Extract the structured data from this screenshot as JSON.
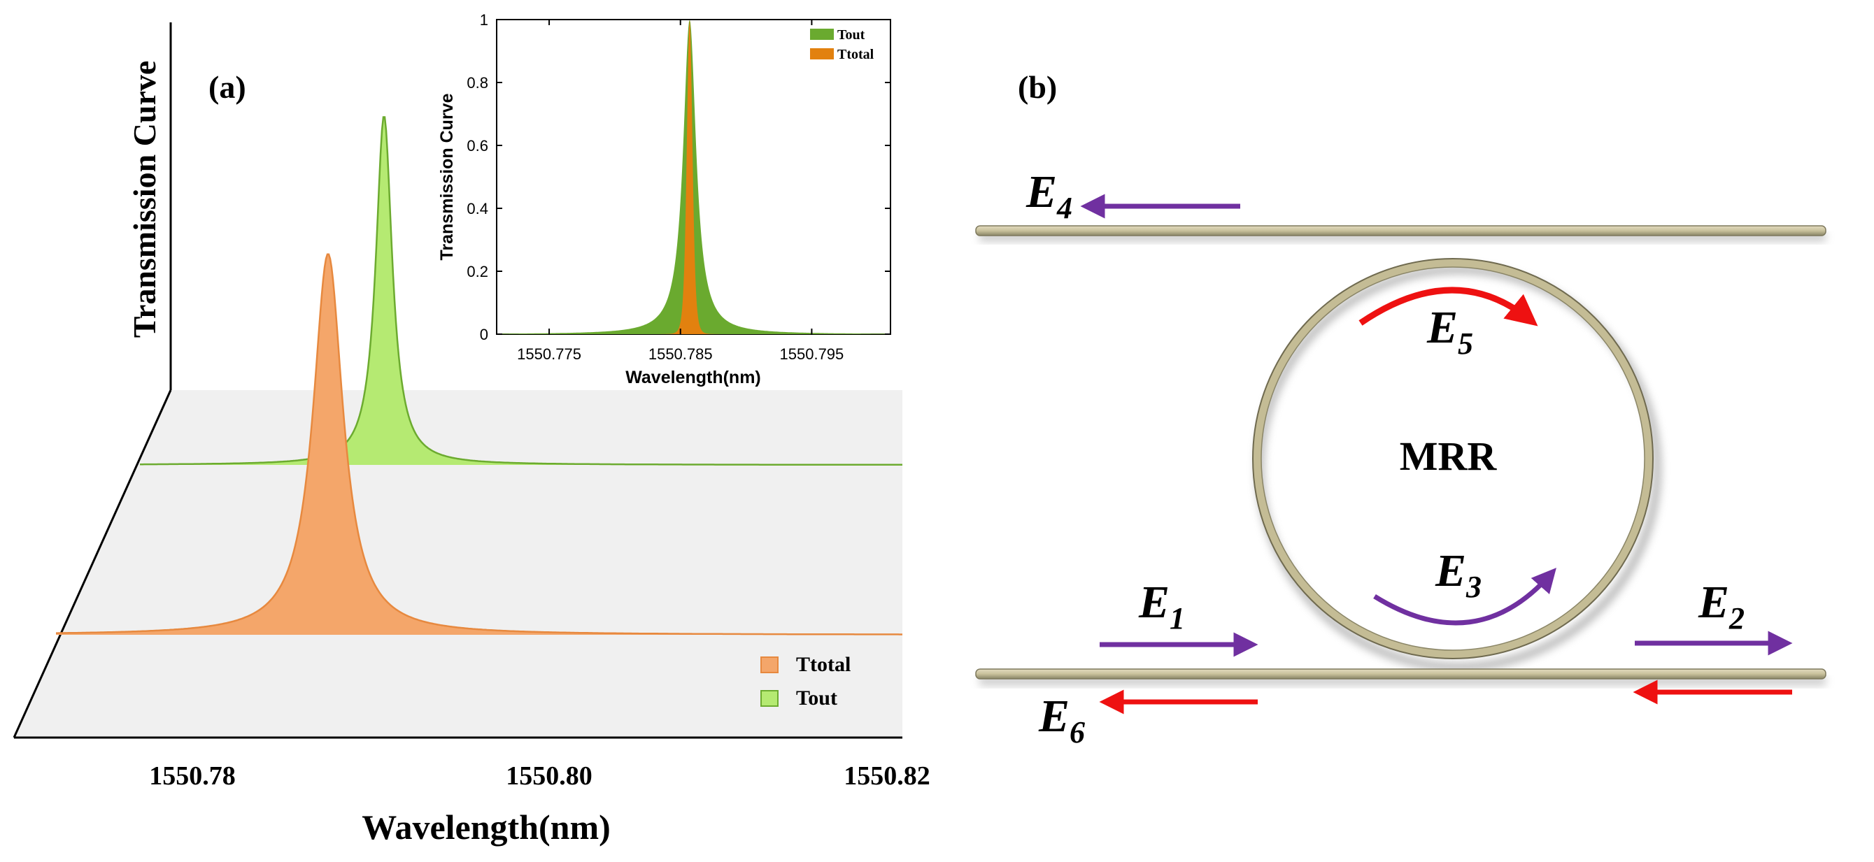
{
  "panel_a": {
    "label": "(a)",
    "z_axis_label": "Transmission Curve",
    "x_axis_label": "Wavelength(nm)",
    "x_ticks": [
      "1550.78",
      "1550.80",
      "1550.82"
    ],
    "legend": [
      {
        "label": "Ttotal",
        "color": "#f4a66a"
      },
      {
        "label": "Tout",
        "color": "#b5ea72"
      }
    ]
  },
  "chart_data": [
    {
      "type": "area",
      "title": "",
      "xlabel": "Wavelength(nm)",
      "ylabel": "Transmission Curve",
      "xlim": [
        1550.77,
        1550.82
      ],
      "x_ticks": [
        1550.78,
        1550.8,
        1550.82
      ],
      "series": [
        {
          "name": "Ttotal",
          "center": 1550.7878,
          "peak": 0.85,
          "halfwidth": 0.0011,
          "color": "#f4a66a",
          "line": "#e7893f"
        },
        {
          "name": "Tout",
          "center": 1550.7905,
          "peak": 0.77,
          "halfwidth": 0.0006,
          "color": "#b5ea72",
          "line": "#6cab2f"
        }
      ]
    },
    {
      "type": "area",
      "title": "",
      "xlabel": "Wavelength(nm)",
      "ylabel": "Transmission Curve",
      "xlim": [
        1550.771,
        1550.801
      ],
      "ylim": [
        0,
        1
      ],
      "x_ticks": [
        "1550.775",
        "1550.785",
        "1550.795"
      ],
      "x_tick_values": [
        1550.775,
        1550.785,
        1550.795
      ],
      "y_ticks": [
        "0",
        "0.2",
        "0.4",
        "0.6",
        "0.8",
        "1"
      ],
      "y_tick_values": [
        0,
        0.2,
        0.4,
        0.6,
        0.8,
        1
      ],
      "legend": [
        "Tout",
        "Ttotal"
      ],
      "series": [
        {
          "name": "Tout",
          "center": 1550.7857,
          "peak": 1.0,
          "halfwidth": 0.0006,
          "color": "#6aaa2f"
        },
        {
          "name": "Ttotal",
          "center": 1550.7857,
          "peak": 1.0,
          "halfwidth": 0.0005,
          "color": "#e2810f"
        }
      ]
    }
  ],
  "panel_b": {
    "label": "(b)",
    "ring_label": "MRR",
    "fields": [
      {
        "name": "E",
        "sub": "4"
      },
      {
        "name": "E",
        "sub": "5"
      },
      {
        "name": "E",
        "sub": "3"
      },
      {
        "name": "E",
        "sub": "1"
      },
      {
        "name": "E",
        "sub": "2"
      },
      {
        "name": "E",
        "sub": "6"
      }
    ],
    "colors": {
      "purple": "#7030a0",
      "red": "#ee1111",
      "waveguide": "#d0c9a3"
    }
  }
}
